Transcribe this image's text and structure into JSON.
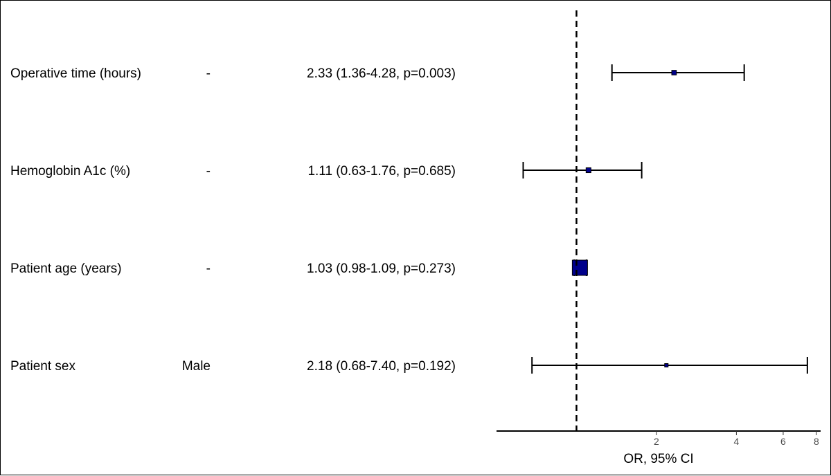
{
  "chart_data": {
    "type": "forest",
    "xlabel": "OR, 95% CI",
    "x_scale": "log",
    "reference_line": 1,
    "xticks": [
      2,
      4,
      6,
      8
    ],
    "xlim": [
      0.5,
      8.3
    ],
    "colors": {
      "marker_fill": "#00008b",
      "marker_stroke": "#000000",
      "line": "#000000"
    },
    "rows": [
      {
        "variable": "Operative time (hours)",
        "level": "-",
        "label": "2.33 (1.36-4.28, p=0.003)",
        "or": 2.33,
        "lower": 1.36,
        "upper": 4.28
      },
      {
        "variable": "Hemoglobin A1c (%)",
        "level": "-",
        "label": "1.11 (0.63-1.76, p=0.685)",
        "or": 1.11,
        "lower": 0.63,
        "upper": 1.76
      },
      {
        "variable": "Patient age (years)",
        "level": "-",
        "label": "1.03 (0.98-1.09, p=0.273)",
        "or": 1.03,
        "lower": 0.98,
        "upper": 1.09
      },
      {
        "variable": "Patient sex",
        "level": "Male",
        "label": "2.18 (0.68-7.40, p=0.192)",
        "or": 2.18,
        "lower": 0.68,
        "upper": 7.4
      }
    ]
  }
}
